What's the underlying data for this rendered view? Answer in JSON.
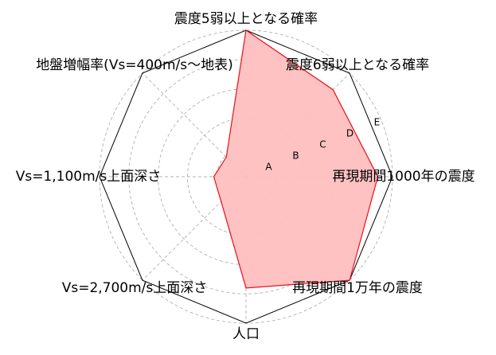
{
  "chart_data": {
    "type": "radar",
    "axes": [
      "震度5弱以上となる確率",
      "震度6弱以上となる確率",
      "再現期間1000年の震度",
      "再現期間1万年の震度",
      "人口",
      "Vs=2,700m/s上面深さ",
      "Vs=1,100m/s上面深さ",
      "地盤増幅率(Vs=400m/s〜地表)"
    ],
    "ring_labels": [
      "A",
      "B",
      "C",
      "D",
      "E"
    ],
    "rmax": 5,
    "values": [
      5.0,
      4.2,
      4.5,
      5.0,
      3.8,
      1.2,
      1.1,
      0.95
    ],
    "grid": true,
    "colors": {
      "fill": "#ffbfbf",
      "line": "#e8101a",
      "frame": "#000000",
      "grid": "#b0b0b0"
    }
  }
}
